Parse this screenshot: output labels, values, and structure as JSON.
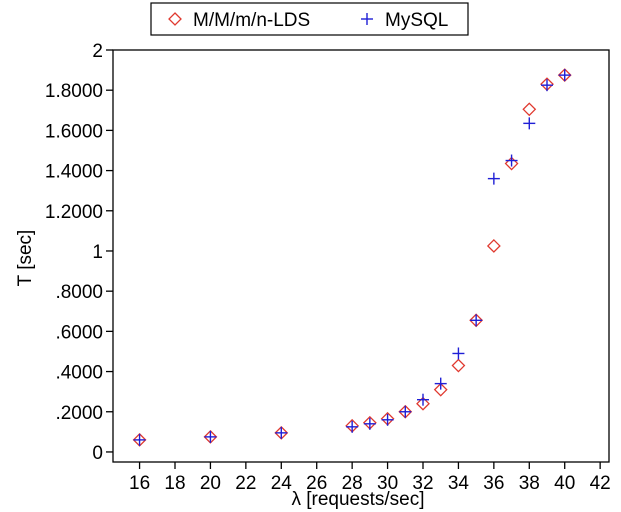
{
  "chart_data": {
    "type": "scatter",
    "xlabel": "λ  [requests/sec]",
    "ylabel": "T [sec]",
    "xlim": [
      14.5,
      42.5
    ],
    "ylim": [
      -0.05,
      2.0
    ],
    "xticks": [
      16,
      18,
      20,
      22,
      24,
      26,
      28,
      30,
      32,
      34,
      36,
      38,
      40,
      42
    ],
    "xtick_labels": [
      "16",
      "18",
      "20",
      "22",
      "24",
      "26",
      "28",
      "30",
      "32",
      "34",
      "36",
      "38",
      "40",
      "42"
    ],
    "yticks": [
      0,
      0.2,
      0.4,
      0.6,
      0.8,
      1.0,
      1.2,
      1.4,
      1.6,
      1.8,
      2.0
    ],
    "ytick_labels": [
      "0",
      ".2000",
      ".4000",
      ".6000",
      ".8000",
      "1",
      "1.2000",
      "1.4000",
      "1.6000",
      "1.8000",
      "2"
    ],
    "grid": false,
    "legend_position": "top",
    "series": [
      {
        "name": "M/M/m/n-LDS",
        "marker": "diamond",
        "color": "#e0392f",
        "x": [
          16,
          20,
          24,
          28,
          29,
          30,
          31,
          32,
          33,
          34,
          35,
          36,
          37,
          38,
          39,
          40
        ],
        "y": [
          0.06,
          0.075,
          0.095,
          0.13,
          0.145,
          0.165,
          0.2,
          0.24,
          0.31,
          0.43,
          0.655,
          1.025,
          1.435,
          1.705,
          1.83,
          1.875
        ]
      },
      {
        "name": "MySQL",
        "marker": "plus",
        "color": "#1f1fd6",
        "x": [
          16,
          20,
          24,
          28,
          29,
          30,
          31,
          32,
          33,
          34,
          35,
          36,
          37,
          38,
          39,
          40
        ],
        "y": [
          0.06,
          0.075,
          0.095,
          0.125,
          0.14,
          0.16,
          0.2,
          0.26,
          0.34,
          0.49,
          0.655,
          1.36,
          1.45,
          1.635,
          1.825,
          1.875
        ]
      }
    ]
  }
}
